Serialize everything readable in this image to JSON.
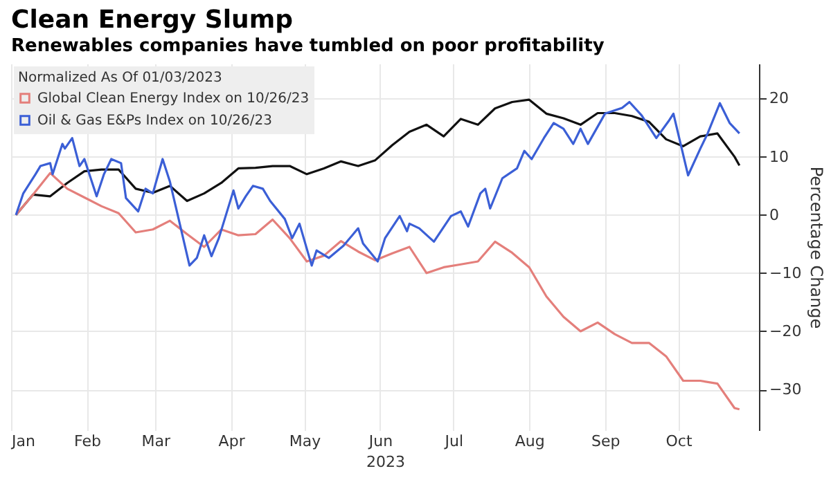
{
  "chart_data": {
    "type": "line",
    "title": "Clean Energy Slump",
    "subtitle": "Renewables companies have tumbled on poor profitability",
    "xlabel": "2023",
    "ylabel": "Percentage Change",
    "legend_title": "Normalized As Of 01/03/2023",
    "x": [
      "2023-01-03",
      "2023-01-10",
      "2023-01-17",
      "2023-01-24",
      "2023-01-31",
      "2023-02-07",
      "2023-02-14",
      "2023-02-21",
      "2023-02-28",
      "2023-03-07",
      "2023-03-14",
      "2023-03-21",
      "2023-03-28",
      "2023-04-04",
      "2023-04-11",
      "2023-04-18",
      "2023-04-25",
      "2023-05-02",
      "2023-05-09",
      "2023-05-16",
      "2023-05-23",
      "2023-05-30",
      "2023-06-06",
      "2023-06-13",
      "2023-06-20",
      "2023-06-27",
      "2023-07-04",
      "2023-07-11",
      "2023-07-18",
      "2023-07-25",
      "2023-08-01",
      "2023-08-08",
      "2023-08-15",
      "2023-08-22",
      "2023-08-29",
      "2023-09-05",
      "2023-09-12",
      "2023-09-19",
      "2023-09-26",
      "2023-10-03",
      "2023-10-10",
      "2023-10-17",
      "2023-10-24",
      "2023-10-26"
    ],
    "series": [
      {
        "color": "#111111",
        "values": [
          0,
          3.5,
          3.2,
          5.5,
          7.5,
          7.8,
          7.8,
          4.5,
          3.8,
          5,
          2.4,
          3.7,
          5.5,
          8,
          8.1,
          8.4,
          8.4,
          7,
          8,
          9.2,
          8.4,
          9.4,
          12,
          14.3,
          15.5,
          13.5,
          16.5,
          15.5,
          18.3,
          19.4,
          19.8,
          17.4,
          16.6,
          15.5,
          17.5,
          17.5,
          17,
          16,
          13,
          11.8,
          13.5,
          14,
          10,
          8.5
        ]
      },
      {
        "name": "Global Clean Energy Index on 10/26/23",
        "color": "#e47f7b",
        "values": [
          0,
          3.5,
          7.2,
          4.5,
          3,
          1.5,
          0.3,
          -3,
          -2.5,
          -1,
          -3.3,
          -5.5,
          -2.5,
          -3.5,
          -3.3,
          -0.8,
          -4,
          -8,
          -7,
          -4.5,
          -6.3,
          -7.8,
          -6.6,
          -5.5,
          -10,
          -9,
          -8.5,
          -8,
          -4.6,
          -6.5,
          -9,
          -14,
          -17.5,
          -20,
          -18.5,
          -20.5,
          -22,
          -22,
          -24.3,
          -28.5,
          -28.5,
          -29,
          -33.2,
          -33.4
        ]
      },
      {
        "name": "Oil & Gas E&Ps Index on 10/26/23",
        "color": "#3b5fd6",
        "x": [
          "2023-01-03",
          "2023-01-06",
          "2023-01-11",
          "2023-01-13",
          "2023-01-17",
          "2023-01-18",
          "2023-01-22",
          "2023-01-23",
          "2023-01-26",
          "2023-01-29",
          "2023-01-31",
          "2023-02-05",
          "2023-02-08",
          "2023-02-11",
          "2023-02-15",
          "2023-02-17",
          "2023-02-22",
          "2023-02-25",
          "2023-02-28",
          "2023-03-04",
          "2023-03-07",
          "2023-03-10",
          "2023-03-15",
          "2023-03-18",
          "2023-03-21",
          "2023-03-24",
          "2023-03-27",
          "2023-04-02",
          "2023-04-04",
          "2023-04-07",
          "2023-04-10",
          "2023-04-14",
          "2023-04-17",
          "2023-04-23",
          "2023-04-26",
          "2023-04-29",
          "2023-05-04",
          "2023-05-06",
          "2023-05-11",
          "2023-05-17",
          "2023-05-23",
          "2023-05-25",
          "2023-05-31",
          "2023-06-03",
          "2023-06-09",
          "2023-06-12",
          "2023-06-13",
          "2023-06-17",
          "2023-06-23",
          "2023-06-30",
          "2023-07-04",
          "2023-07-07",
          "2023-07-12",
          "2023-07-14",
          "2023-07-16",
          "2023-07-21",
          "2023-07-27",
          "2023-07-30",
          "2023-08-02",
          "2023-08-07",
          "2023-08-11",
          "2023-08-15",
          "2023-08-19",
          "2023-08-22",
          "2023-08-25",
          "2023-09-01",
          "2023-09-08",
          "2023-09-11",
          "2023-09-16",
          "2023-09-22",
          "2023-09-27",
          "2023-09-29",
          "2023-10-05",
          "2023-10-10",
          "2023-10-13",
          "2023-10-18",
          "2023-10-22",
          "2023-10-26"
        ],
        "values": [
          0,
          3.7,
          7,
          8.4,
          8.9,
          7,
          12.2,
          11.4,
          13.2,
          8.4,
          9.6,
          3.2,
          7,
          9.6,
          8.9,
          2.9,
          0.6,
          4.5,
          3.7,
          9.6,
          5.7,
          0.3,
          -8.7,
          -7.4,
          -3.5,
          -7.1,
          -4,
          4.2,
          1.1,
          3.2,
          5,
          4.5,
          2.4,
          -0.7,
          -4,
          -1.5,
          -8.7,
          -6.1,
          -7.4,
          -5.3,
          -2.3,
          -4.9,
          -8,
          -4,
          -0.2,
          -2.8,
          -1.5,
          -2.3,
          -4.6,
          -0.2,
          0.6,
          -2,
          3.7,
          4.5,
          1.1,
          6.3,
          8,
          11,
          9.6,
          13.2,
          15.8,
          14.8,
          12.2,
          14.8,
          12.2,
          17.4,
          18.4,
          19.4,
          17.1,
          13.2,
          16.1,
          17.4,
          6.8,
          11.4,
          14,
          19.2,
          15.8,
          14
        ]
      }
    ],
    "xlim": [
      "2023-01-01",
      "2023-11-03"
    ],
    "xticks": [
      {
        "value": "2023-01-01",
        "label": "Jan"
      },
      {
        "value": "2023-02-01",
        "label": "Feb"
      },
      {
        "value": "2023-03-01",
        "label": "Mar"
      },
      {
        "value": "2023-04-01",
        "label": "Apr"
      },
      {
        "value": "2023-05-01",
        "label": "May"
      },
      {
        "value": "2023-06-01",
        "label": "Jun"
      },
      {
        "value": "2023-07-01",
        "label": "Jul"
      },
      {
        "value": "2023-08-01",
        "label": "Aug"
      },
      {
        "value": "2023-09-01",
        "label": "Sep"
      },
      {
        "value": "2023-10-01",
        "label": "Oct"
      }
    ],
    "ylim": [
      -37,
      26
    ],
    "yticks": [
      -30,
      -20,
      -10,
      0,
      10,
      20
    ],
    "grid": true,
    "legend": "top left"
  }
}
